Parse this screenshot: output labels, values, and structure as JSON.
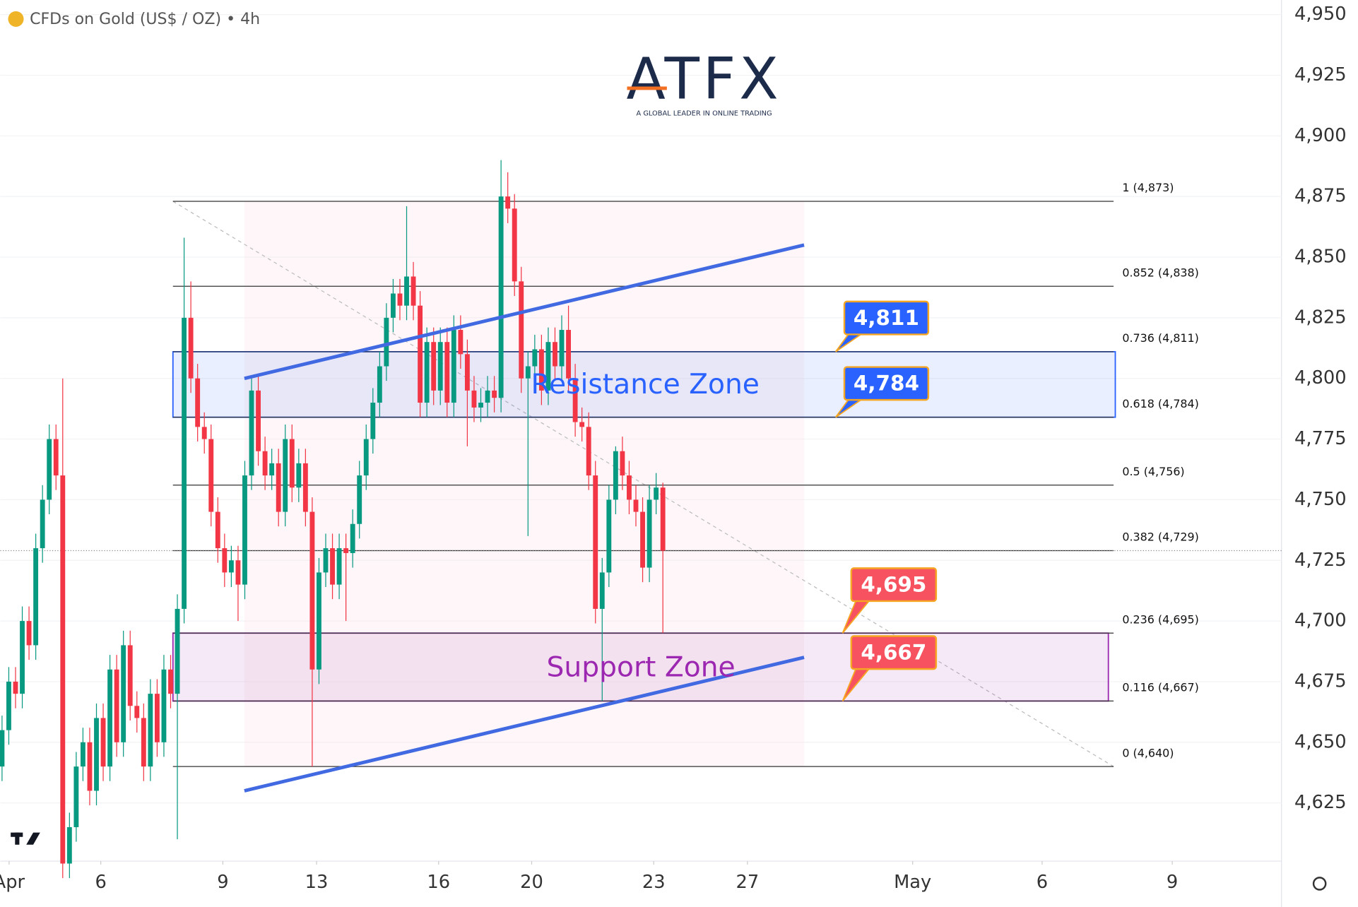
{
  "header": {
    "symbol": "CFDs on Gold (US$ / OZ) • 4h",
    "logo": "ATFX",
    "tagline": "A GLOBAL LEADER IN ONLINE TRADING"
  },
  "chart_data": {
    "type": "candlestick",
    "up_color": "#089981",
    "down_color": "#f23645",
    "xlim": [
      0,
      190
    ],
    "ylim": [
      4601,
      4956
    ],
    "xticks": [
      {
        "value": 1.3,
        "label": "Apr"
      },
      {
        "value": 14.9,
        "label": "6"
      },
      {
        "value": 33,
        "label": "9"
      },
      {
        "value": 46.9,
        "label": "13"
      },
      {
        "value": 65,
        "label": "16"
      },
      {
        "value": 78.8,
        "label": "20"
      },
      {
        "value": 96.9,
        "label": "23"
      },
      {
        "value": 110.8,
        "label": "27"
      },
      {
        "value": 135.3,
        "label": "May"
      },
      {
        "value": 154.5,
        "label": "6"
      },
      {
        "value": 173.8,
        "label": "9"
      }
    ],
    "yticks": [
      {
        "value": 4625,
        "label": "4,625"
      },
      {
        "value": 4650,
        "label": "4,650"
      },
      {
        "value": 4675,
        "label": "4,675"
      },
      {
        "value": 4700,
        "label": "4,700"
      },
      {
        "value": 4725,
        "label": "4,725"
      },
      {
        "value": 4750,
        "label": "4,750"
      },
      {
        "value": 4775,
        "label": "4,775"
      },
      {
        "value": 4800,
        "label": "4,800"
      },
      {
        "value": 4825,
        "label": "4,825"
      },
      {
        "value": 4850,
        "label": "4,850"
      },
      {
        "value": 4875,
        "label": "4,875"
      },
      {
        "value": 4900,
        "label": "4,900"
      },
      {
        "value": 4925,
        "label": "4,925"
      },
      {
        "value": 4950,
        "label": "4,950"
      }
    ],
    "open": [
      4640,
      4655,
      4675,
      4670,
      4700,
      4690,
      4730,
      4750,
      4775,
      4760,
      4600,
      4615,
      4640,
      4650,
      4630,
      4660,
      4640,
      4680,
      4650,
      4690,
      4665,
      4660,
      4640,
      4670,
      4650,
      4680,
      4670,
      4705,
      4825,
      4800,
      4780,
      4775,
      4745,
      4730,
      4720,
      4725,
      4715,
      4760,
      4795,
      4770,
      4760,
      4765,
      4745,
      4775,
      4755,
      4765,
      4745,
      4680,
      4720,
      4730,
      4715,
      4730,
      4728,
      4740,
      4760,
      4775,
      4790,
      4805,
      4825,
      4835,
      4830,
      4842,
      4830,
      4790,
      4815,
      4795,
      4815,
      4790,
      4820,
      4810,
      4795,
      4788,
      4790,
      4795,
      4792,
      4875,
      4870,
      4840,
      4800,
      4805,
      4812,
      4795,
      4815,
      4805,
      4820,
      4800,
      4782,
      4780,
      4760,
      4705,
      4720,
      4750,
      4770,
      4760,
      4750,
      4745,
      4722,
      4750,
      4755
    ],
    "high": [
      4661,
      4681,
      4681,
      4706,
      4706,
      4736,
      4756,
      4781,
      4781,
      4800,
      4621,
      4646,
      4656,
      4656,
      4666,
      4666,
      4686,
      4686,
      4696,
      4696,
      4671,
      4666,
      4676,
      4676,
      4686,
      4686,
      4711,
      4858,
      4840,
      4806,
      4786,
      4781,
      4751,
      4736,
      4731,
      4731,
      4766,
      4801,
      4801,
      4776,
      4771,
      4771,
      4781,
      4781,
      4771,
      4771,
      4751,
      4726,
      4736,
      4736,
      4736,
      4736,
      4746,
      4766,
      4781,
      4796,
      4811,
      4831,
      4841,
      4841,
      4871,
      4848,
      4836,
      4821,
      4821,
      4821,
      4821,
      4826,
      4826,
      4816,
      4801,
      4796,
      4801,
      4801,
      4890,
      4885,
      4876,
      4846,
      4811,
      4818,
      4818,
      4821,
      4821,
      4826,
      4830,
      4806,
      4788,
      4786,
      4766,
      4726,
      4756,
      4772,
      4776,
      4766,
      4756,
      4751,
      4756,
      4761,
      4757
    ],
    "low": [
      4634,
      4649,
      4664,
      4664,
      4684,
      4684,
      4724,
      4744,
      4754,
      4594,
      4594,
      4609,
      4634,
      4624,
      4624,
      4634,
      4634,
      4644,
      4644,
      4659,
      4654,
      4634,
      4634,
      4644,
      4644,
      4664,
      4610,
      4699,
      4794,
      4774,
      4769,
      4739,
      4724,
      4714,
      4714,
      4700,
      4709,
      4754,
      4764,
      4754,
      4754,
      4739,
      4739,
      4749,
      4749,
      4739,
      4640,
      4674,
      4714,
      4709,
      4709,
      4700,
      4722,
      4734,
      4754,
      4769,
      4784,
      4799,
      4819,
      4824,
      4824,
      4824,
      4784,
      4784,
      4789,
      4789,
      4784,
      4784,
      4804,
      4772,
      4782,
      4782,
      4784,
      4786,
      4786,
      4864,
      4834,
      4794,
      4735,
      4799,
      4789,
      4789,
      4799,
      4799,
      4794,
      4776,
      4774,
      4754,
      4699,
      4667,
      4714,
      4744,
      4754,
      4744,
      4739,
      4716,
      4716,
      4744,
      4695
    ],
    "close": [
      4655,
      4675,
      4670,
      4700,
      4690,
      4730,
      4750,
      4775,
      4760,
      4600,
      4615,
      4640,
      4650,
      4630,
      4660,
      4640,
      4680,
      4650,
      4690,
      4665,
      4660,
      4640,
      4670,
      4650,
      4680,
      4670,
      4705,
      4825,
      4800,
      4780,
      4775,
      4745,
      4730,
      4720,
      4725,
      4715,
      4760,
      4795,
      4770,
      4760,
      4765,
      4745,
      4775,
      4755,
      4765,
      4745,
      4680,
      4720,
      4730,
      4715,
      4730,
      4728,
      4740,
      4760,
      4775,
      4790,
      4805,
      4825,
      4835,
      4830,
      4842,
      4830,
      4790,
      4815,
      4795,
      4815,
      4790,
      4820,
      4810,
      4795,
      4788,
      4790,
      4795,
      4792,
      4875,
      4870,
      4840,
      4800,
      4805,
      4812,
      4795,
      4815,
      4805,
      4820,
      4800,
      4782,
      4780,
      4760,
      4705,
      4720,
      4750,
      4770,
      4760,
      4750,
      4745,
      4722,
      4750,
      4755,
      4729
    ],
    "fib": {
      "x": [
        25.6,
        165.1
      ],
      "levels": [
        {
          "value": 4873,
          "label": "1 (4,873)"
        },
        {
          "value": 4838,
          "label": "0.852 (4,838)"
        },
        {
          "value": 4811,
          "label": "0.736 (4,811)"
        },
        {
          "value": 4784,
          "label": "0.618 (4,784)"
        },
        {
          "value": 4756,
          "label": "0.5 (4,756)"
        },
        {
          "value": 4729,
          "label": "0.382 (4,729)"
        },
        {
          "value": 4695,
          "label": "0.236 (4,695)"
        },
        {
          "value": 4667,
          "label": "0.116 (4,667)"
        },
        {
          "value": 4640,
          "label": "0 (4,640)"
        }
      ]
    },
    "zones": [
      {
        "name": "Resistance Zone",
        "low": 4784,
        "high": 4811,
        "color": "#2962ff"
      },
      {
        "name": "Support Zone",
        "low": 4667,
        "high": 4695,
        "color": "#9c27b0"
      }
    ],
    "channel": [
      {
        "x": [
          36.2,
          119.2
        ],
        "y": [
          4800,
          4855
        ]
      },
      {
        "x": [
          36.2,
          119.2
        ],
        "y": [
          4630,
          4685
        ]
      }
    ],
    "callouts": [
      {
        "value": 4811,
        "label": "4,811",
        "color": "#2962ff"
      },
      {
        "value": 4784,
        "label": "4,784",
        "color": "#2962ff"
      },
      {
        "value": 4695,
        "label": "4,695",
        "color": "#f7525f"
      },
      {
        "value": 4667,
        "label": "4,667",
        "color": "#f7525f"
      }
    ]
  }
}
